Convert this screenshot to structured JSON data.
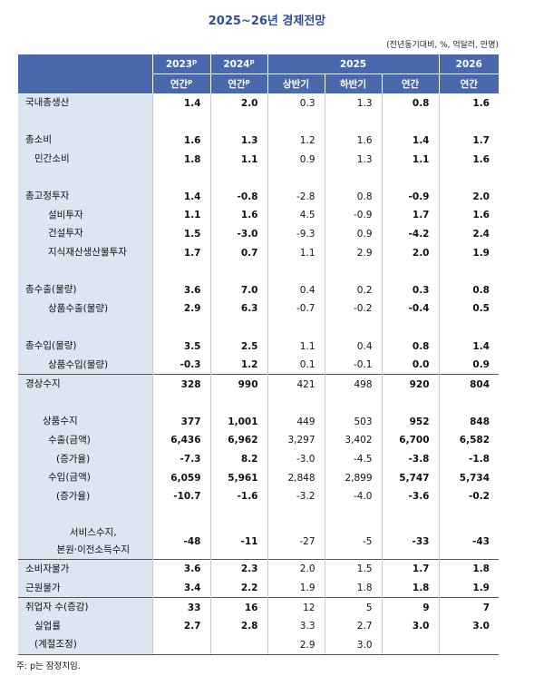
{
  "title": "2025~26년 경제전망",
  "unit": "(전년동기대비, %, 억달러, 만명)",
  "header": {
    "top": [
      {
        "text": "2023",
        "sup": "p"
      },
      {
        "text": "2024",
        "sup": "p"
      },
      {
        "text": "2025"
      },
      {
        "text": "2026"
      }
    ],
    "sub": [
      {
        "text": "연간",
        "sup": "p"
      },
      {
        "text": "연간",
        "sup": "p"
      },
      {
        "text": "상반기"
      },
      {
        "text": "하반기"
      },
      {
        "text": "연간"
      },
      {
        "text": "연간"
      }
    ]
  },
  "sections": [
    [
      {
        "label": "국내총생산",
        "values": [
          "1.4",
          "2.0",
          "0.3",
          "1.3",
          "0.8",
          "1.6"
        ]
      },
      null,
      {
        "label": "총소비",
        "values": [
          "1.6",
          "1.3",
          "1.2",
          "1.6",
          "1.4",
          "1.7"
        ]
      },
      {
        "label": "민간소비",
        "values": [
          "1.8",
          "1.1",
          "0.9",
          "1.3",
          "1.1",
          "1.6"
        ]
      },
      null,
      {
        "label": "총고정투자",
        "values": [
          "1.4",
          "-0.8",
          "-2.8",
          "0.8",
          "-0.9",
          "2.0"
        ]
      },
      {
        "label": "설비투자",
        "values": [
          "1.1",
          "1.6",
          "4.5",
          "-0.9",
          "1.7",
          "1.6"
        ]
      },
      {
        "label": "건설투자",
        "values": [
          "1.5",
          "-3.0",
          "-9.3",
          "0.9",
          "-4.2",
          "2.4"
        ]
      },
      {
        "label": "지식재산생산물투자",
        "values": [
          "1.7",
          "0.7",
          "1.1",
          "2.9",
          "2.0",
          "1.9"
        ]
      },
      null,
      {
        "label": "총수출(물량)",
        "values": [
          "3.6",
          "7.0",
          "0.4",
          "0.2",
          "0.3",
          "0.8"
        ]
      },
      {
        "label": "상품수출(물량)",
        "values": [
          "2.9",
          "6.3",
          "-0.7",
          "-0.2",
          "-0.4",
          "0.5"
        ]
      },
      null,
      {
        "label": "총수입(물량)",
        "values": [
          "3.5",
          "2.5",
          "1.1",
          "0.4",
          "0.8",
          "1.4"
        ]
      },
      {
        "label": "상품수입(물량)",
        "values": [
          "-0.3",
          "1.2",
          "0.1",
          "-0.1",
          "0.0",
          "0.9"
        ]
      }
    ],
    [
      {
        "label": "경상수지",
        "values": [
          "328",
          "990",
          "421",
          "498",
          "920",
          "804"
        ]
      },
      null,
      {
        "label": "상품수지",
        "values": [
          "377",
          "1,001",
          "449",
          "503",
          "952",
          "848"
        ]
      },
      {
        "label": "수출(금액)",
        "values": [
          "6,436",
          "6,962",
          "3,297",
          "3,402",
          "6,700",
          "6,582"
        ]
      },
      {
        "label": "(증가율)",
        "values": [
          "-7.3",
          "8.2",
          "-3.0",
          "-4.5",
          "-3.8",
          "-1.8"
        ]
      },
      {
        "label": "수입(금액)",
        "values": [
          "6,059",
          "5,961",
          "2,848",
          "2,899",
          "5,747",
          "5,734"
        ]
      },
      {
        "label": "(증가율)",
        "values": [
          "-10.7",
          "-1.6",
          "-3.2",
          "-4.0",
          "-3.6",
          "-0.2"
        ]
      },
      null,
      {
        "label": "서비스수지,\n본원·이전소득수지",
        "values": [
          "-48",
          "-11",
          "-27",
          "-5",
          "-33",
          "-43"
        ]
      }
    ],
    [
      {
        "label": "소비자물가",
        "values": [
          "3.6",
          "2.3",
          "2.0",
          "1.5",
          "1.7",
          "1.8"
        ]
      },
      {
        "label": "근원물가",
        "values": [
          "3.4",
          "2.2",
          "1.9",
          "1.8",
          "1.8",
          "1.9"
        ]
      }
    ],
    [
      {
        "label": "취업자 수(증감)",
        "values": [
          "33",
          "16",
          "12",
          "5",
          "9",
          "7"
        ]
      },
      {
        "label": "실업률",
        "values": [
          "2.7",
          "2.8",
          "3.3",
          "2.7",
          "3.0",
          "3.0"
        ]
      },
      {
        "label": "(계절조정)",
        "values": [
          null,
          null,
          "2.9",
          "3.0",
          null,
          null
        ]
      }
    ]
  ],
  "footnote": "주: p는 잠정치임."
}
